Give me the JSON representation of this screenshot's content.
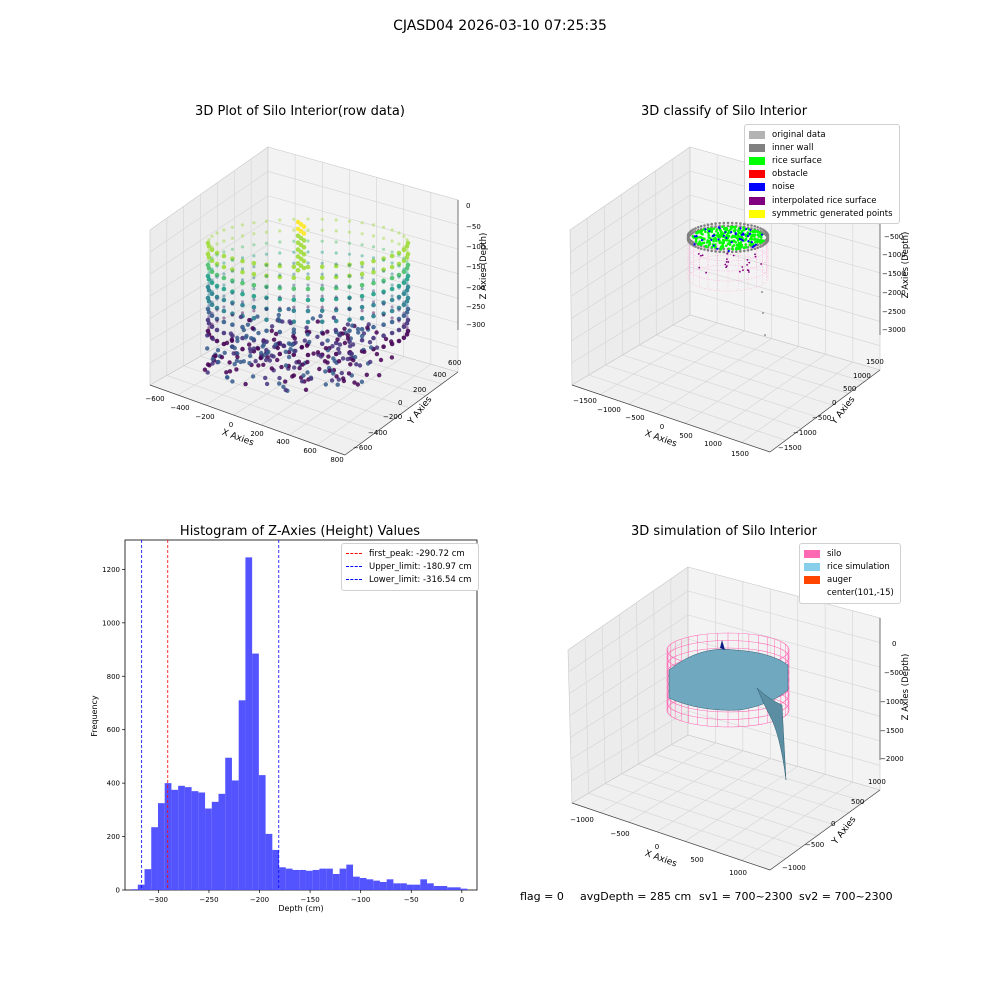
{
  "suptitle": "CJASD04 2026-03-10 07:25:35",
  "chart_data": [
    {
      "type": "scatter",
      "title": "3D Plot of Silo Interior(row data)",
      "xlabel": "X Axies",
      "ylabel": "Y Axies",
      "zlabel": "Z Axies (Depth)",
      "x_ticks": [
        "−600",
        "−400",
        "−200",
        "0",
        "200",
        "400",
        "600",
        "800"
      ],
      "y_ticks": [
        "−600",
        "−400",
        "−200",
        "0",
        "200",
        "400",
        "600"
      ],
      "z_ticks": [
        "0",
        "−50",
        "−100",
        "−150",
        "−200",
        "−250",
        "−300"
      ],
      "colormap": "viridis"
    },
    {
      "type": "scatter",
      "title": "3D classify of Silo Interior",
      "xlabel": "X Axies",
      "ylabel": "Y Axies",
      "zlabel": "Z Axies (Depth)",
      "x_ticks": [
        "−1500",
        "−1000",
        "−500",
        "0",
        "500",
        "1000",
        "1500"
      ],
      "y_ticks": [
        "−1500",
        "−1000",
        "−500",
        "0",
        "500",
        "1000",
        "1500"
      ],
      "z_ticks": [
        "0",
        "−500",
        "−1000",
        "−1500",
        "−2000",
        "−2500",
        "−3000"
      ],
      "legend": [
        {
          "label": "original data",
          "color": "#b3b3b3"
        },
        {
          "label": "inner wall",
          "color": "#808080"
        },
        {
          "label": "rice surface",
          "color": "#00ff00"
        },
        {
          "label": "obstacle",
          "color": "#ff0000"
        },
        {
          "label": "noise",
          "color": "#0000ff"
        },
        {
          "label": "interpolated rice surface",
          "color": "#800080"
        },
        {
          "label": "symmetric generated points",
          "color": "#ffff00"
        }
      ]
    },
    {
      "type": "bar",
      "title": "Histogram of Z-Axies (Height) Values",
      "xlabel": "Depth (cm)",
      "ylabel": "Frequency",
      "xlim": [
        -333,
        15
      ],
      "ylim": [
        0,
        1310
      ],
      "x_ticks": [
        -300,
        -250,
        -200,
        -150,
        -100,
        -50,
        0
      ],
      "x_tick_labels": [
        "−300",
        "−250",
        "−200",
        "−150",
        "−100",
        "−50",
        "0"
      ],
      "y_ticks": [
        0,
        200,
        400,
        600,
        800,
        1000,
        1200
      ],
      "bar_color": "#4b4bff",
      "bin_start": -327,
      "bin_width": 6.65,
      "values": [
        3,
        20,
        78,
        235,
        325,
        400,
        375,
        390,
        385,
        370,
        365,
        305,
        330,
        360,
        495,
        410,
        710,
        1245,
        885,
        430,
        210,
        150,
        85,
        80,
        75,
        75,
        72,
        75,
        80,
        80,
        60,
        80,
        95,
        50,
        45,
        40,
        35,
        30,
        40,
        25,
        25,
        20,
        20,
        40,
        25,
        15,
        15,
        10,
        10,
        5
      ],
      "vlines": [
        {
          "label": "first_peak: -290.72 cm",
          "x": -290.72,
          "color": "#ff0000"
        },
        {
          "label": "Upper_limit: -180.97 cm",
          "x": -180.97,
          "color": "#0000ff"
        },
        {
          "label": "Lower_limit: -316.54 cm",
          "x": -316.54,
          "color": "#0000ff"
        }
      ]
    },
    {
      "type": "surface",
      "title": "3D simulation of Silo Interior",
      "xlabel": "X Axies",
      "ylabel": "Y Axies",
      "zlabel": "Z Axies (Depth)",
      "x_ticks": [
        "−1000",
        "−500",
        "0",
        "500",
        "1000"
      ],
      "y_ticks": [
        "−1000",
        "−500",
        "0",
        "500",
        "1000"
      ],
      "z_ticks": [
        "0",
        "−500",
        "−1000",
        "−1500",
        "−2000"
      ],
      "legend": [
        {
          "label": "silo",
          "color": "#ff69b4"
        },
        {
          "label": "rice simulation",
          "color": "#87ceeb"
        },
        {
          "label": "auger",
          "color": "#ff4500"
        },
        {
          "label": "center(101,-15)",
          "color": ""
        }
      ]
    }
  ],
  "footer": {
    "flag": "flag = 0",
    "avg": "avgDepth = 285 cm",
    "sv1": "sv1 = 700~2300",
    "sv2": "sv2 = 700~2300"
  }
}
